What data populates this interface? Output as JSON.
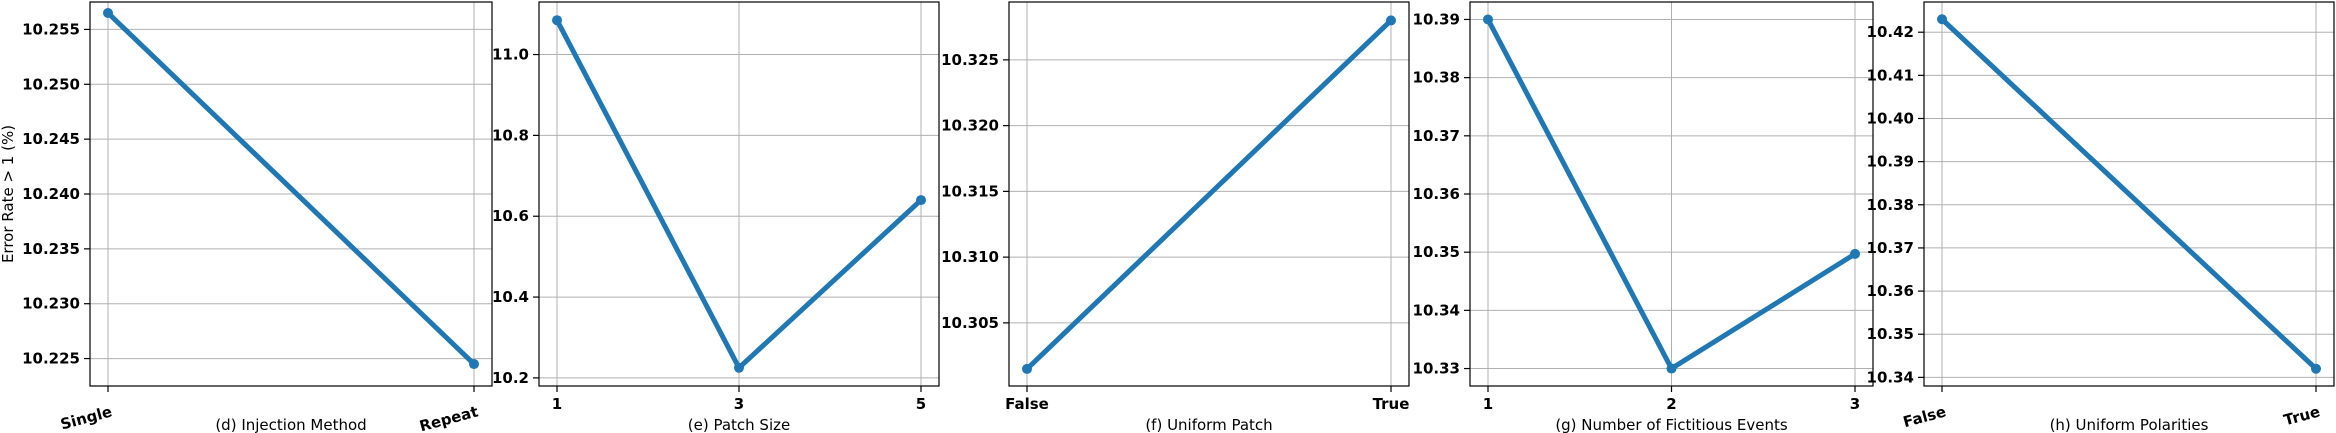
{
  "chart_data": [
    {
      "type": "line",
      "xlabel": "(d) Injection Method",
      "ylabel": "Error Rate > 1 (%)",
      "categories": [
        "Single",
        "Repeat"
      ],
      "values": [
        10.2565,
        10.2245
      ],
      "ylim": [
        10.2225,
        10.2575
      ],
      "yticks": [
        "10.225",
        "10.230",
        "10.235",
        "10.240",
        "10.245",
        "10.250",
        "10.255"
      ],
      "grid": true
    },
    {
      "type": "line",
      "xlabel": "(e) Patch Size",
      "categories": [
        "1",
        "3",
        "5"
      ],
      "values": [
        11.085,
        10.225,
        10.64
      ],
      "ylim": [
        10.18,
        11.13
      ],
      "yticks": [
        "10.2",
        "10.4",
        "10.6",
        "10.8",
        "11.0"
      ],
      "grid": true
    },
    {
      "type": "line",
      "xlabel": "(f) Uniform Patch",
      "categories": [
        "False",
        "True"
      ],
      "values": [
        10.3015,
        10.328
      ],
      "ylim": [
        10.3002,
        10.3294
      ],
      "yticks": [
        "10.305",
        "10.310",
        "10.315",
        "10.320",
        "10.325"
      ],
      "grid": true
    },
    {
      "type": "line",
      "xlabel": "(g) Number of Fictitious Events",
      "categories": [
        "1",
        "2",
        "3"
      ],
      "values": [
        10.39,
        10.33,
        10.3497
      ],
      "ylim": [
        10.327,
        10.393
      ],
      "yticks": [
        "10.33",
        "10.34",
        "10.35",
        "10.36",
        "10.37",
        "10.38",
        "10.39"
      ],
      "grid": true
    },
    {
      "type": "line",
      "xlabel": "(h) Uniform Polarities",
      "categories": [
        "False",
        "True"
      ],
      "values": [
        10.423,
        10.342
      ],
      "ylim": [
        10.338,
        10.427
      ],
      "yticks": [
        "10.34",
        "10.35",
        "10.36",
        "10.37",
        "10.38",
        "10.39",
        "10.40",
        "10.41",
        "10.42"
      ],
      "grid": true
    }
  ]
}
